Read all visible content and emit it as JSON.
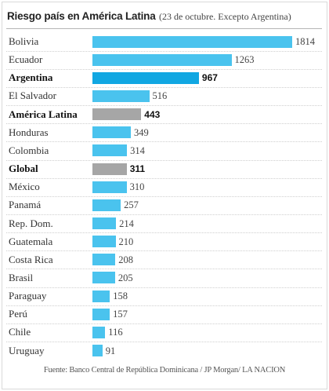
{
  "header": {
    "title": "Riesgo país en América Latina",
    "subtitle": "(23 de octubre. Excepto Argentina)"
  },
  "source": "Fuente: Banco Central de República Dominicana / JP Morgan/ LA NACION",
  "colors": {
    "default": "#4ac3ee",
    "highlight": "#11a7e2",
    "aggregate": "#a6a6a6"
  },
  "chart_data": {
    "type": "bar",
    "orientation": "horizontal",
    "title": "Riesgo país en América Latina",
    "subtitle": "(23 de octubre. Excepto Argentina)",
    "categories": [
      "Bolivia",
      "Ecuador",
      "Argentina",
      "El Salvador",
      "América Latina",
      "Honduras",
      "Colombia",
      "Global",
      "México",
      "Panamá",
      "Rep. Dom.",
      "Guatemala",
      "Costa Rica",
      "Brasil",
      "Paraguay",
      "Perú",
      "Chile",
      "Uruguay"
    ],
    "values": [
      1814,
      1263,
      967,
      516,
      443,
      349,
      314,
      311,
      310,
      257,
      214,
      210,
      208,
      205,
      158,
      157,
      116,
      91
    ],
    "styles": [
      "default",
      "default",
      "highlight",
      "default",
      "aggregate",
      "default",
      "default",
      "aggregate",
      "default",
      "default",
      "default",
      "default",
      "default",
      "default",
      "default",
      "default",
      "default",
      "default"
    ],
    "bold": [
      false,
      false,
      true,
      false,
      true,
      false,
      false,
      true,
      false,
      false,
      false,
      false,
      false,
      false,
      false,
      false,
      false,
      false
    ],
    "xlim": [
      0,
      1814
    ],
    "grid": false,
    "legend": "none"
  }
}
